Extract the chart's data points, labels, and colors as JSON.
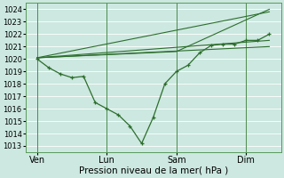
{
  "bg_color": "#cce8e0",
  "grid_color": "#aad4cc",
  "line_color": "#2d6e2d",
  "xlabel": "Pression niveau de la mer( hPa )",
  "ylim": [
    1012.5,
    1024.5
  ],
  "yticks": [
    1013,
    1014,
    1015,
    1016,
    1017,
    1018,
    1019,
    1020,
    1021,
    1022,
    1023,
    1024
  ],
  "day_positions": [
    1,
    4,
    7,
    10
  ],
  "day_labels": [
    "Ven",
    "Lun",
    "Sam",
    "Dim"
  ],
  "vline_positions": [
    1,
    4,
    7,
    10
  ],
  "detail_x": [
    1.0,
    1.5,
    2.0,
    2.5,
    3.0,
    3.5,
    4.0,
    4.5,
    5.0,
    5.5,
    6.0,
    6.5,
    7.0,
    7.5,
    8.0,
    8.5,
    9.0,
    9.5,
    10.0,
    10.5,
    11.0
  ],
  "detail_y": [
    1020.0,
    1019.3,
    1018.8,
    1018.5,
    1018.6,
    1016.5,
    1016.0,
    1015.5,
    1014.6,
    1013.2,
    1015.3,
    1018.0,
    1019.0,
    1019.5,
    1020.5,
    1021.1,
    1021.2,
    1021.2,
    1021.5,
    1021.5,
    1022.0
  ],
  "trend1_x": [
    1.0,
    11.0
  ],
  "trend1_y": [
    1020.1,
    1021.0
  ],
  "trend2_x": [
    1.0,
    11.0
  ],
  "trend2_y": [
    1020.1,
    1021.5
  ],
  "trend3_x": [
    1.0,
    7.0,
    11.0
  ],
  "trend3_y": [
    1020.1,
    1020.6,
    1024.0
  ],
  "trend4_x": [
    1.0,
    11.0
  ],
  "trend4_y": [
    1020.1,
    1023.8
  ],
  "xlim": [
    0.5,
    11.5
  ],
  "figsize": [
    3.2,
    2.0
  ],
  "dpi": 100
}
